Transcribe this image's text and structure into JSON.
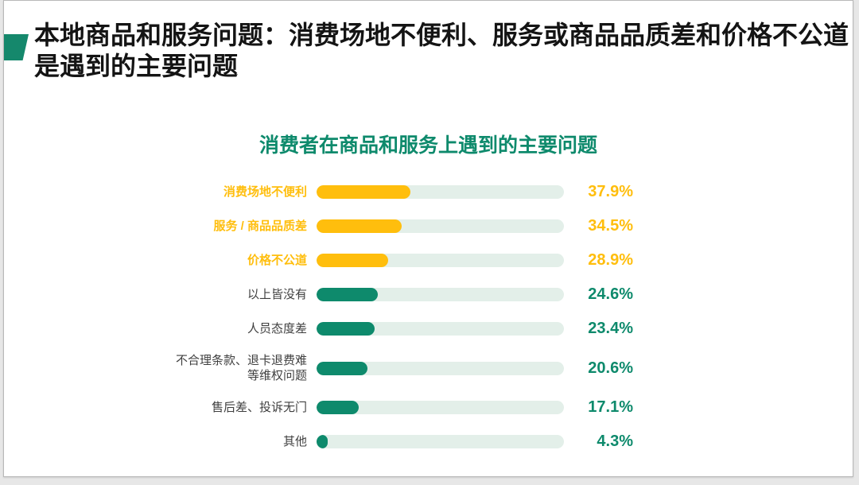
{
  "slide": {
    "header": {
      "title_lines": {
        "line1": "本地商品和服务问题：消费场地不便利、服务或商品品质差和价格不公道",
        "line2": "是遇到的主要问题"
      }
    }
  },
  "colors": {
    "green": "#0e8a6c",
    "yellow": "#ffbe0d",
    "track": "#e3efe9",
    "label_dark": "#3f3f3f",
    "title_dark": "#141414",
    "marker_green": "#15886c"
  },
  "chart_data": {
    "type": "bar",
    "orientation": "horizontal",
    "title": "消费者在商品和服务上遇到的主要问题",
    "categories": [
      "消费场地不便利",
      "服务 / 商品品质差",
      "价格不公道",
      "以上皆没有",
      "人员态度差",
      "不合理条款、退卡退费难等维权问题",
      "售后差、投诉无门",
      "其他"
    ],
    "values": [
      37.9,
      34.5,
      28.9,
      24.6,
      23.4,
      20.6,
      17.1,
      4.3
    ],
    "value_labels": [
      "37.9%",
      "34.5%",
      "28.9%",
      "24.6%",
      "23.4%",
      "20.6%",
      "17.1%",
      "4.3%"
    ],
    "bar_colors": [
      "yellow",
      "yellow",
      "yellow",
      "green",
      "green",
      "green",
      "green",
      "green"
    ],
    "xlim": [
      0,
      100
    ],
    "grid": false,
    "legend": false
  }
}
